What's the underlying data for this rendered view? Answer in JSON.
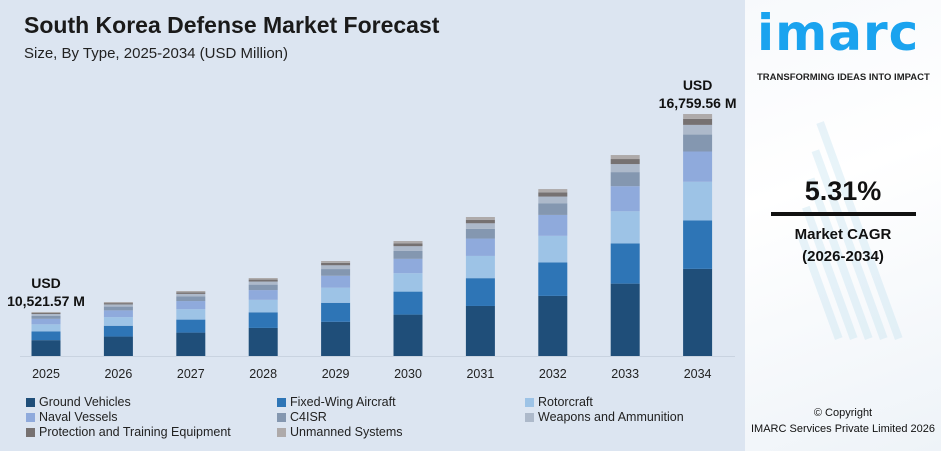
{
  "title": "South Korea Defense Market Forecast",
  "subtitle": "Size, By Type, 2025-2034 (USD Million)",
  "chart_data": {
    "type": "bar",
    "stacked": true,
    "categories": [
      "2025",
      "2026",
      "2027",
      "2028",
      "2029",
      "2030",
      "2031",
      "2032",
      "2033",
      "2034"
    ],
    "totals": [
      10521.57,
      10836,
      11183,
      11592,
      12128,
      12758,
      13514,
      14395,
      15467,
      16759.56
    ],
    "ylim": [
      9135,
      17500
    ],
    "grid": false,
    "legend_placement": "bottom",
    "series": [
      {
        "name": "Ground Vehicles",
        "share": 0.36,
        "color": "#1f4e79"
      },
      {
        "name": "Fixed-Wing Aircraft",
        "share": 0.2,
        "color": "#2e75b6"
      },
      {
        "name": "Rotorcraft",
        "share": 0.16,
        "color": "#9dc3e6"
      },
      {
        "name": "Naval Vessels",
        "share": 0.125,
        "color": "#8faadc"
      },
      {
        "name": "C4ISR",
        "share": 0.07,
        "color": "#8497b0"
      },
      {
        "name": "Weapons and Ammunition",
        "share": 0.04,
        "color": "#adb9ca"
      },
      {
        "name": "Protection and Training Equipment",
        "share": 0.025,
        "color": "#767171"
      },
      {
        "name": "Unmanned Systems",
        "share": 0.02,
        "color": "#aeaaaa"
      }
    ],
    "annotations": [
      {
        "category": "2025",
        "line1": "USD",
        "line2": "10,521.57 M"
      },
      {
        "category": "2034",
        "line1": "USD",
        "line2": "16,759.56 M"
      }
    ]
  },
  "brand": {
    "logo": "imarc",
    "tagline": "TRANSFORMING IDEAS INTO IMPACT",
    "color": "#1aa3ef"
  },
  "cagr": {
    "value": "5.31%",
    "label": "Market CAGR",
    "period": "(2026-2034)"
  },
  "copyright": {
    "line1": "© Copyright",
    "line2": "IMARC Services Private Limited 2026"
  }
}
